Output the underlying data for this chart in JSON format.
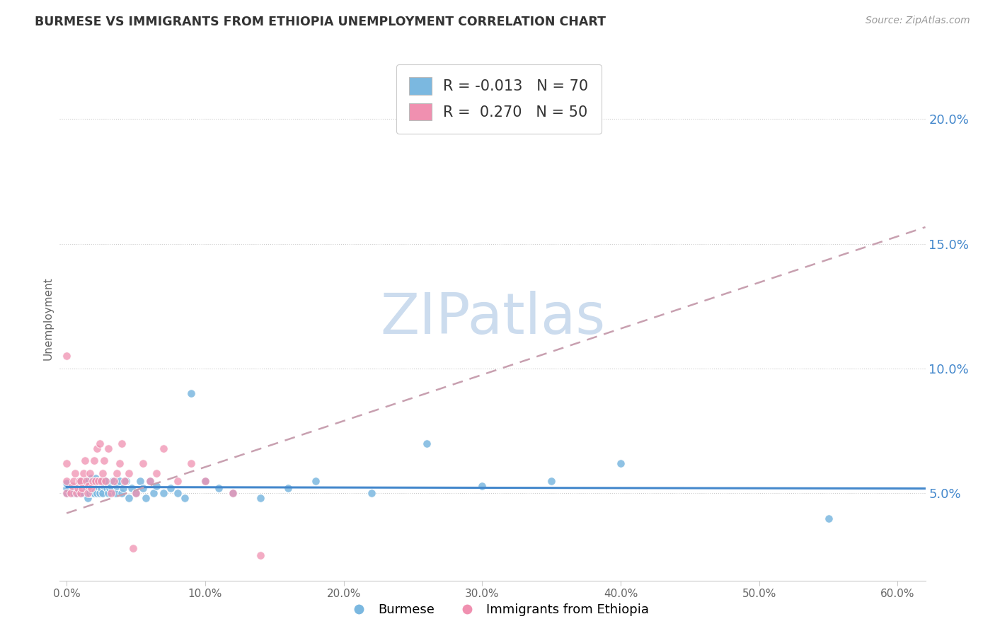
{
  "title": "BURMESE VS IMMIGRANTS FROM ETHIOPIA UNEMPLOYMENT CORRELATION CHART",
  "source": "Source: ZipAtlas.com",
  "ylabel": "Unemployment",
  "right_yticks": [
    "5.0%",
    "10.0%",
    "15.0%",
    "20.0%"
  ],
  "right_ytick_vals": [
    0.05,
    0.1,
    0.15,
    0.2
  ],
  "xlim": [
    -0.005,
    0.62
  ],
  "ylim": [
    0.015,
    0.225
  ],
  "burmese_R": "-0.013",
  "burmese_N": "70",
  "ethiopia_R": "0.270",
  "ethiopia_N": "50",
  "burmese_color": "#7bb8e0",
  "ethiopia_color": "#f090b0",
  "burmese_line_color": "#4488cc",
  "ethiopia_line_color": "#e06080",
  "ethiopia_dash_color": "#c8a0b0",
  "watermark_text": "ZIPatlas",
  "watermark_color": "#ccdcee",
  "legend_burmese_label": "Burmese",
  "legend_ethiopia_label": "Immigrants from Ethiopia",
  "burmese_line_intercept": 0.0525,
  "burmese_line_slope": -0.001,
  "ethiopia_line_intercept": 0.042,
  "ethiopia_line_slope": 0.185,
  "burmese_scatter_x": [
    0.0,
    0.0,
    0.0,
    0.005,
    0.005,
    0.007,
    0.008,
    0.009,
    0.01,
    0.01,
    0.01,
    0.012,
    0.013,
    0.013,
    0.015,
    0.015,
    0.016,
    0.017,
    0.017,
    0.018,
    0.019,
    0.02,
    0.02,
    0.021,
    0.022,
    0.022,
    0.023,
    0.024,
    0.025,
    0.025,
    0.026,
    0.027,
    0.028,
    0.029,
    0.03,
    0.031,
    0.032,
    0.033,
    0.035,
    0.036,
    0.038,
    0.04,
    0.041,
    0.043,
    0.045,
    0.047,
    0.05,
    0.053,
    0.055,
    0.057,
    0.06,
    0.063,
    0.065,
    0.07,
    0.075,
    0.08,
    0.085,
    0.09,
    0.1,
    0.11,
    0.12,
    0.14,
    0.16,
    0.18,
    0.22,
    0.26,
    0.3,
    0.35,
    0.4,
    0.55
  ],
  "burmese_scatter_y": [
    0.05,
    0.052,
    0.054,
    0.05,
    0.052,
    0.05,
    0.053,
    0.055,
    0.05,
    0.052,
    0.055,
    0.05,
    0.052,
    0.055,
    0.048,
    0.052,
    0.055,
    0.05,
    0.053,
    0.056,
    0.05,
    0.05,
    0.053,
    0.056,
    0.05,
    0.053,
    0.055,
    0.05,
    0.052,
    0.055,
    0.05,
    0.053,
    0.055,
    0.052,
    0.05,
    0.052,
    0.053,
    0.055,
    0.05,
    0.053,
    0.055,
    0.05,
    0.052,
    0.055,
    0.048,
    0.052,
    0.05,
    0.055,
    0.052,
    0.048,
    0.055,
    0.05,
    0.053,
    0.05,
    0.052,
    0.05,
    0.048,
    0.09,
    0.055,
    0.052,
    0.05,
    0.048,
    0.052,
    0.055,
    0.05,
    0.07,
    0.053,
    0.055,
    0.062,
    0.04
  ],
  "ethiopia_scatter_x": [
    0.0,
    0.0,
    0.0,
    0.0,
    0.003,
    0.004,
    0.005,
    0.006,
    0.007,
    0.008,
    0.009,
    0.01,
    0.01,
    0.011,
    0.012,
    0.013,
    0.014,
    0.015,
    0.016,
    0.017,
    0.018,
    0.019,
    0.02,
    0.021,
    0.022,
    0.023,
    0.024,
    0.025,
    0.026,
    0.027,
    0.028,
    0.03,
    0.032,
    0.034,
    0.036,
    0.038,
    0.04,
    0.042,
    0.045,
    0.048,
    0.05,
    0.055,
    0.06,
    0.065,
    0.07,
    0.08,
    0.09,
    0.1,
    0.12,
    0.14
  ],
  "ethiopia_scatter_y": [
    0.05,
    0.055,
    0.062,
    0.105,
    0.05,
    0.053,
    0.055,
    0.058,
    0.05,
    0.052,
    0.055,
    0.05,
    0.055,
    0.052,
    0.058,
    0.063,
    0.055,
    0.05,
    0.053,
    0.058,
    0.052,
    0.055,
    0.063,
    0.055,
    0.068,
    0.055,
    0.07,
    0.055,
    0.058,
    0.063,
    0.055,
    0.068,
    0.05,
    0.055,
    0.058,
    0.062,
    0.07,
    0.055,
    0.058,
    0.028,
    0.05,
    0.062,
    0.055,
    0.058,
    0.068,
    0.055,
    0.062,
    0.055,
    0.05,
    0.025
  ]
}
